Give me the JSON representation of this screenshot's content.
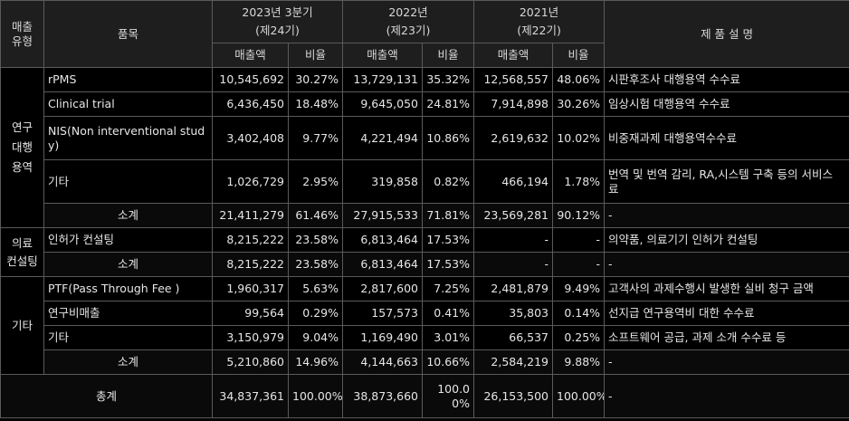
{
  "header": {
    "type": "매출\n유형",
    "item": "품목",
    "periods": [
      {
        "label": "2023년 3분기\n(제24기)",
        "sales": "매출액",
        "ratio": "비율"
      },
      {
        "label": "2022년\n(제23기)",
        "sales": "매출액",
        "ratio": "비율"
      },
      {
        "label": "2021년\n(제22기)",
        "sales": "매출액",
        "ratio": "비율"
      }
    ],
    "desc": "제 품 설 명"
  },
  "rows": [
    {
      "group": "연구\n대행\n용역",
      "item": "rPMS",
      "v": [
        "10,545,692",
        "30.27%",
        "13,729,131",
        "35.32%",
        "12,568,557",
        "48.06%"
      ],
      "desc": "시판후조사 대행용역 수수료"
    },
    {
      "item": "Clinical trial",
      "v": [
        "6,436,450",
        "18.48%",
        "9,645,050",
        "24.81%",
        "7,914,898",
        "30.26%"
      ],
      "desc": "임상시험 대행용역 수수료"
    },
    {
      "item": "NIS(Non interventional stud\ny)",
      "v": [
        "3,402,408",
        "9.77%",
        "4,221,494",
        "10.86%",
        "2,619,632",
        "10.02%"
      ],
      "desc": "비중재과제 대행용역수수료"
    },
    {
      "item": "기타",
      "v": [
        "1,026,729",
        "2.95%",
        "319,858",
        "0.82%",
        "466,194",
        "1.78%"
      ],
      "desc": "번역 및 번역 감리, RA,시스템 구축 등의 서비스\n료"
    },
    {
      "item": "소계",
      "subtotal": true,
      "v": [
        "21,411,279",
        "61.46%",
        "27,915,533",
        "71.81%",
        "23,569,281",
        "90.12%"
      ],
      "desc": "-"
    },
    {
      "group": "의료\n컨설팅",
      "item": "인허가 컨설팅",
      "v": [
        "8,215,222",
        "23.58%",
        "6,813,464",
        "17.53%",
        "-",
        "-"
      ],
      "desc": "의약품, 의료기기 인허가 컨설팅"
    },
    {
      "item": "소계",
      "subtotal": true,
      "v": [
        "8,215,222",
        "23.58%",
        "6,813,464",
        "17.53%",
        "-",
        "-"
      ],
      "desc": "-"
    },
    {
      "group": "기타",
      "item": "PTF(Pass Through Fee )",
      "v": [
        "1,960,317",
        "5.63%",
        "2,817,600",
        "7.25%",
        "2,481,879",
        "9.49%"
      ],
      "desc": "고객사의 과제수행시 발생한 실비 청구 금액"
    },
    {
      "item": "연구비매출",
      "v": [
        "99,564",
        "0.29%",
        "157,573",
        "0.41%",
        "35,803",
        "0.14%"
      ],
      "desc": "선지급 연구용역비 대한 수수료"
    },
    {
      "item": "기타",
      "v": [
        "3,150,979",
        "9.04%",
        "1,169,490",
        "3.01%",
        "66,537",
        "0.25%"
      ],
      "desc": "소프트웨어 공급, 과제 소개 수수료 등"
    },
    {
      "item": "소계",
      "subtotal": true,
      "v": [
        "5,210,860",
        "14.96%",
        "4,144,663",
        "10.66%",
        "2,584,219",
        "9.88%"
      ],
      "desc": "-"
    }
  ],
  "total": {
    "label": "총계",
    "v": [
      "34,837,361",
      "100.00%",
      "38,873,660",
      "100.0\n0%",
      "26,153,500",
      "100.00%"
    ],
    "desc": "-"
  }
}
